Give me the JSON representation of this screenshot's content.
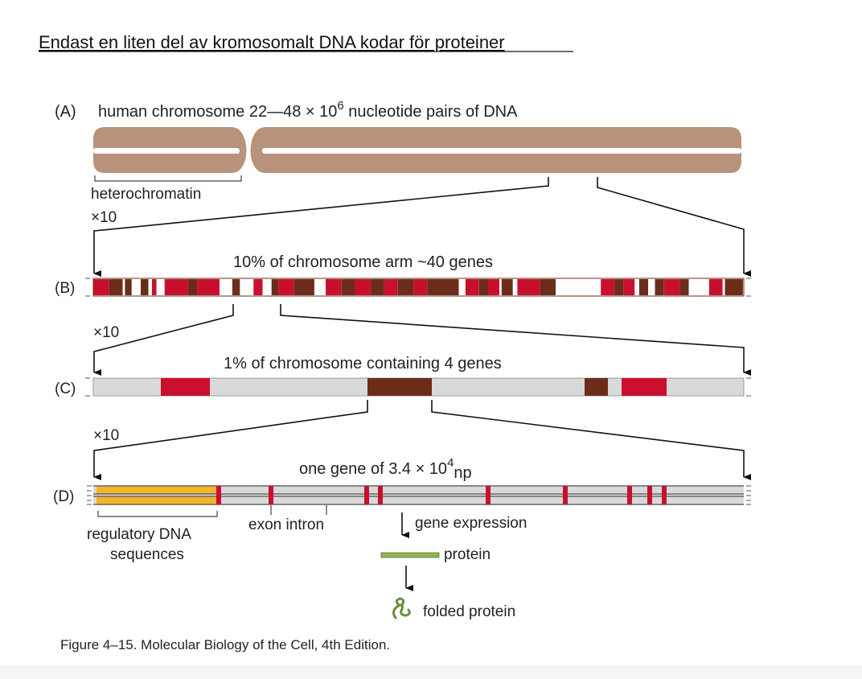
{
  "title": "Endast en liten del av kromosomalt DNA kodar för proteiner",
  "panel_a": {
    "letter": "(A)",
    "text": "human chromosome 22—48 × 10",
    "sup": "6",
    "text_after": " nucleotide pairs of DNA",
    "heterochromatin": "heterochromatin",
    "zoom": "×10"
  },
  "panel_b": {
    "letter": "(B)",
    "caption": "10% of chromosome arm ~40 genes",
    "zoom": "×10"
  },
  "panel_c": {
    "letter": "(C)",
    "caption": "1% of chromosome containing 4 genes",
    "zoom": "×10"
  },
  "panel_d": {
    "letter": "(D)",
    "caption": "one gene of 3.4 × 10",
    "sup": "4",
    "sub": "np",
    "regulatory_1": "regulatory DNA",
    "regulatory_2": "sequences",
    "exon_intron": "exon intron",
    "gene_expression": "gene expression",
    "protein": "protein",
    "folded_protein": "folded protein"
  },
  "figure_caption": "Figure 4–15. Molecular Biology of the Cell, 4th Edition.",
  "colors": {
    "chromosome": "#b8927a",
    "exon_red": "#c8102e",
    "gene_brown": "#6b2d1a",
    "dna_gray": "#d9d9d9",
    "regulatory_yellow": "#f2b42a",
    "protein_green": "#8fb25a"
  }
}
